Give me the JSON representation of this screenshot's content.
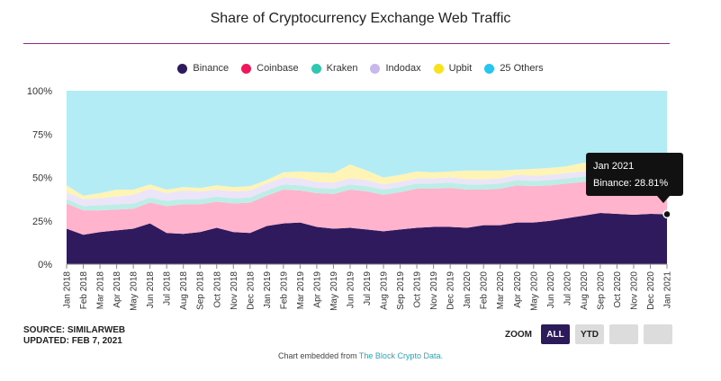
{
  "page": {
    "title": "Share of Cryptocurrency Exchange Web Traffic"
  },
  "legend": [
    {
      "name": "Binance",
      "color": "#2e1a5c"
    },
    {
      "name": "Coinbase",
      "color": "#f0185a"
    },
    {
      "name": "Kraken",
      "color": "#2ec7b0"
    },
    {
      "name": "Indodax",
      "color": "#c8b8ee"
    },
    {
      "name": "Upbit",
      "color": "#f7e21c"
    },
    {
      "name": "25 Others",
      "color": "#28c6ee"
    }
  ],
  "chart_data": {
    "type": "area",
    "stacked": true,
    "percent": true,
    "title": "Share of Cryptocurrency Exchange Web Traffic",
    "categories": [
      "Jan 2018",
      "Feb 2018",
      "Mar 2018",
      "Apr 2018",
      "May 2018",
      "Jun 2018",
      "Jul 2018",
      "Aug 2018",
      "Sep 2018",
      "Oct 2018",
      "Nov 2018",
      "Dec 2018",
      "Jan 2019",
      "Feb 2019",
      "Mar 2019",
      "Apr 2019",
      "May 2019",
      "Jun 2019",
      "Jul 2019",
      "Aug 2019",
      "Sep 2019",
      "Oct 2019",
      "Nov 2019",
      "Dec 2019",
      "Jan 2020",
      "Feb 2020",
      "Mar 2020",
      "Apr 2020",
      "May 2020",
      "Jun 2020",
      "Jul 2020",
      "Aug 2020",
      "Sep 2020",
      "Oct 2020",
      "Nov 2020",
      "Dec 2020",
      "Jan 2021"
    ],
    "yticks": [
      "0%",
      "25%",
      "50%",
      "75%",
      "100%"
    ],
    "ylim": [
      0,
      100
    ],
    "series": [
      {
        "name": "Binance",
        "color": "#2e1a5c",
        "values": [
          20.5,
          17,
          18.5,
          19.5,
          20.5,
          23.5,
          18,
          17.5,
          18.5,
          21,
          18.5,
          18,
          22,
          23.5,
          24,
          21.5,
          20.5,
          21,
          20,
          19,
          20,
          21,
          21.5,
          21.5,
          21,
          22.5,
          22.5,
          24,
          24,
          25,
          26.5,
          28,
          29.5,
          29,
          28.5,
          29,
          28.81
        ]
      },
      {
        "name": "Coinbase",
        "color": "#ffb3cd",
        "values": [
          14.5,
          14,
          12.5,
          12,
          11.5,
          12,
          15.5,
          17,
          16,
          15,
          16.5,
          17.5,
          17.5,
          19.5,
          18.5,
          19.5,
          20,
          22,
          22,
          21,
          21.5,
          22.5,
          22,
          22.5,
          22,
          20.5,
          21,
          21.5,
          21,
          20.5,
          20,
          19.5,
          19,
          20.5,
          20.5,
          21,
          15.5
        ]
      },
      {
        "name": "Kraken",
        "color": "#bdeee6",
        "values": [
          2.5,
          2.5,
          3,
          3,
          3,
          3,
          3,
          3,
          3,
          3,
          3,
          3,
          3,
          3,
          3,
          3,
          3,
          3,
          3,
          3,
          3,
          3,
          3,
          3,
          3,
          3,
          3,
          3,
          3,
          3,
          3,
          3,
          3,
          3,
          3,
          3,
          3
        ]
      },
      {
        "name": "Indodax",
        "color": "#ece4f8",
        "values": [
          4,
          4,
          4,
          4.5,
          5,
          5,
          4.5,
          5,
          4.5,
          4,
          4,
          4,
          4,
          4,
          4,
          3.5,
          3.5,
          3.5,
          3.5,
          3,
          3,
          3,
          3,
          3,
          3,
          3,
          3,
          3,
          3,
          3,
          3,
          3,
          3,
          2.5,
          2.5,
          2.5,
          2.5
        ]
      },
      {
        "name": "Upbit",
        "color": "#fdf4b6",
        "values": [
          4,
          2,
          3,
          4,
          3,
          2.5,
          2,
          2,
          2,
          2.5,
          2.5,
          2.5,
          2,
          3,
          4,
          5.5,
          5.5,
          8,
          5.5,
          4,
          4,
          4,
          3.5,
          3.5,
          5,
          5,
          4.5,
          3,
          4,
          4,
          4,
          5,
          4.5,
          4.5,
          4.5,
          4.5,
          5
        ]
      },
      {
        "name": "25 Others",
        "color": "#b4ecf6",
        "values": [
          54.5,
          60.5,
          59,
          57,
          57,
          54,
          57,
          55.5,
          56,
          54.5,
          55.5,
          55,
          51.5,
          47,
          46.5,
          47,
          48.5,
          42.5,
          46,
          50,
          48.5,
          46.5,
          47,
          46.5,
          46,
          46,
          46,
          45.5,
          45,
          44.5,
          43.5,
          41.5,
          41,
          40.5,
          41,
          40,
          45.19
        ]
      }
    ],
    "tooltip": {
      "date": "Jan 2021",
      "series": "Binance",
      "value_text": "Binance: 28.81%"
    }
  },
  "footer": {
    "source": "SOURCE: SIMILARWEB",
    "updated": "UPDATED: FEB 7, 2021",
    "embed_prefix": "Chart embedded from ",
    "embed_link": "The Block Crypto Data."
  },
  "zoom": {
    "label": "ZOOM",
    "buttons": [
      "ALL",
      "YTD"
    ],
    "active": "ALL"
  }
}
